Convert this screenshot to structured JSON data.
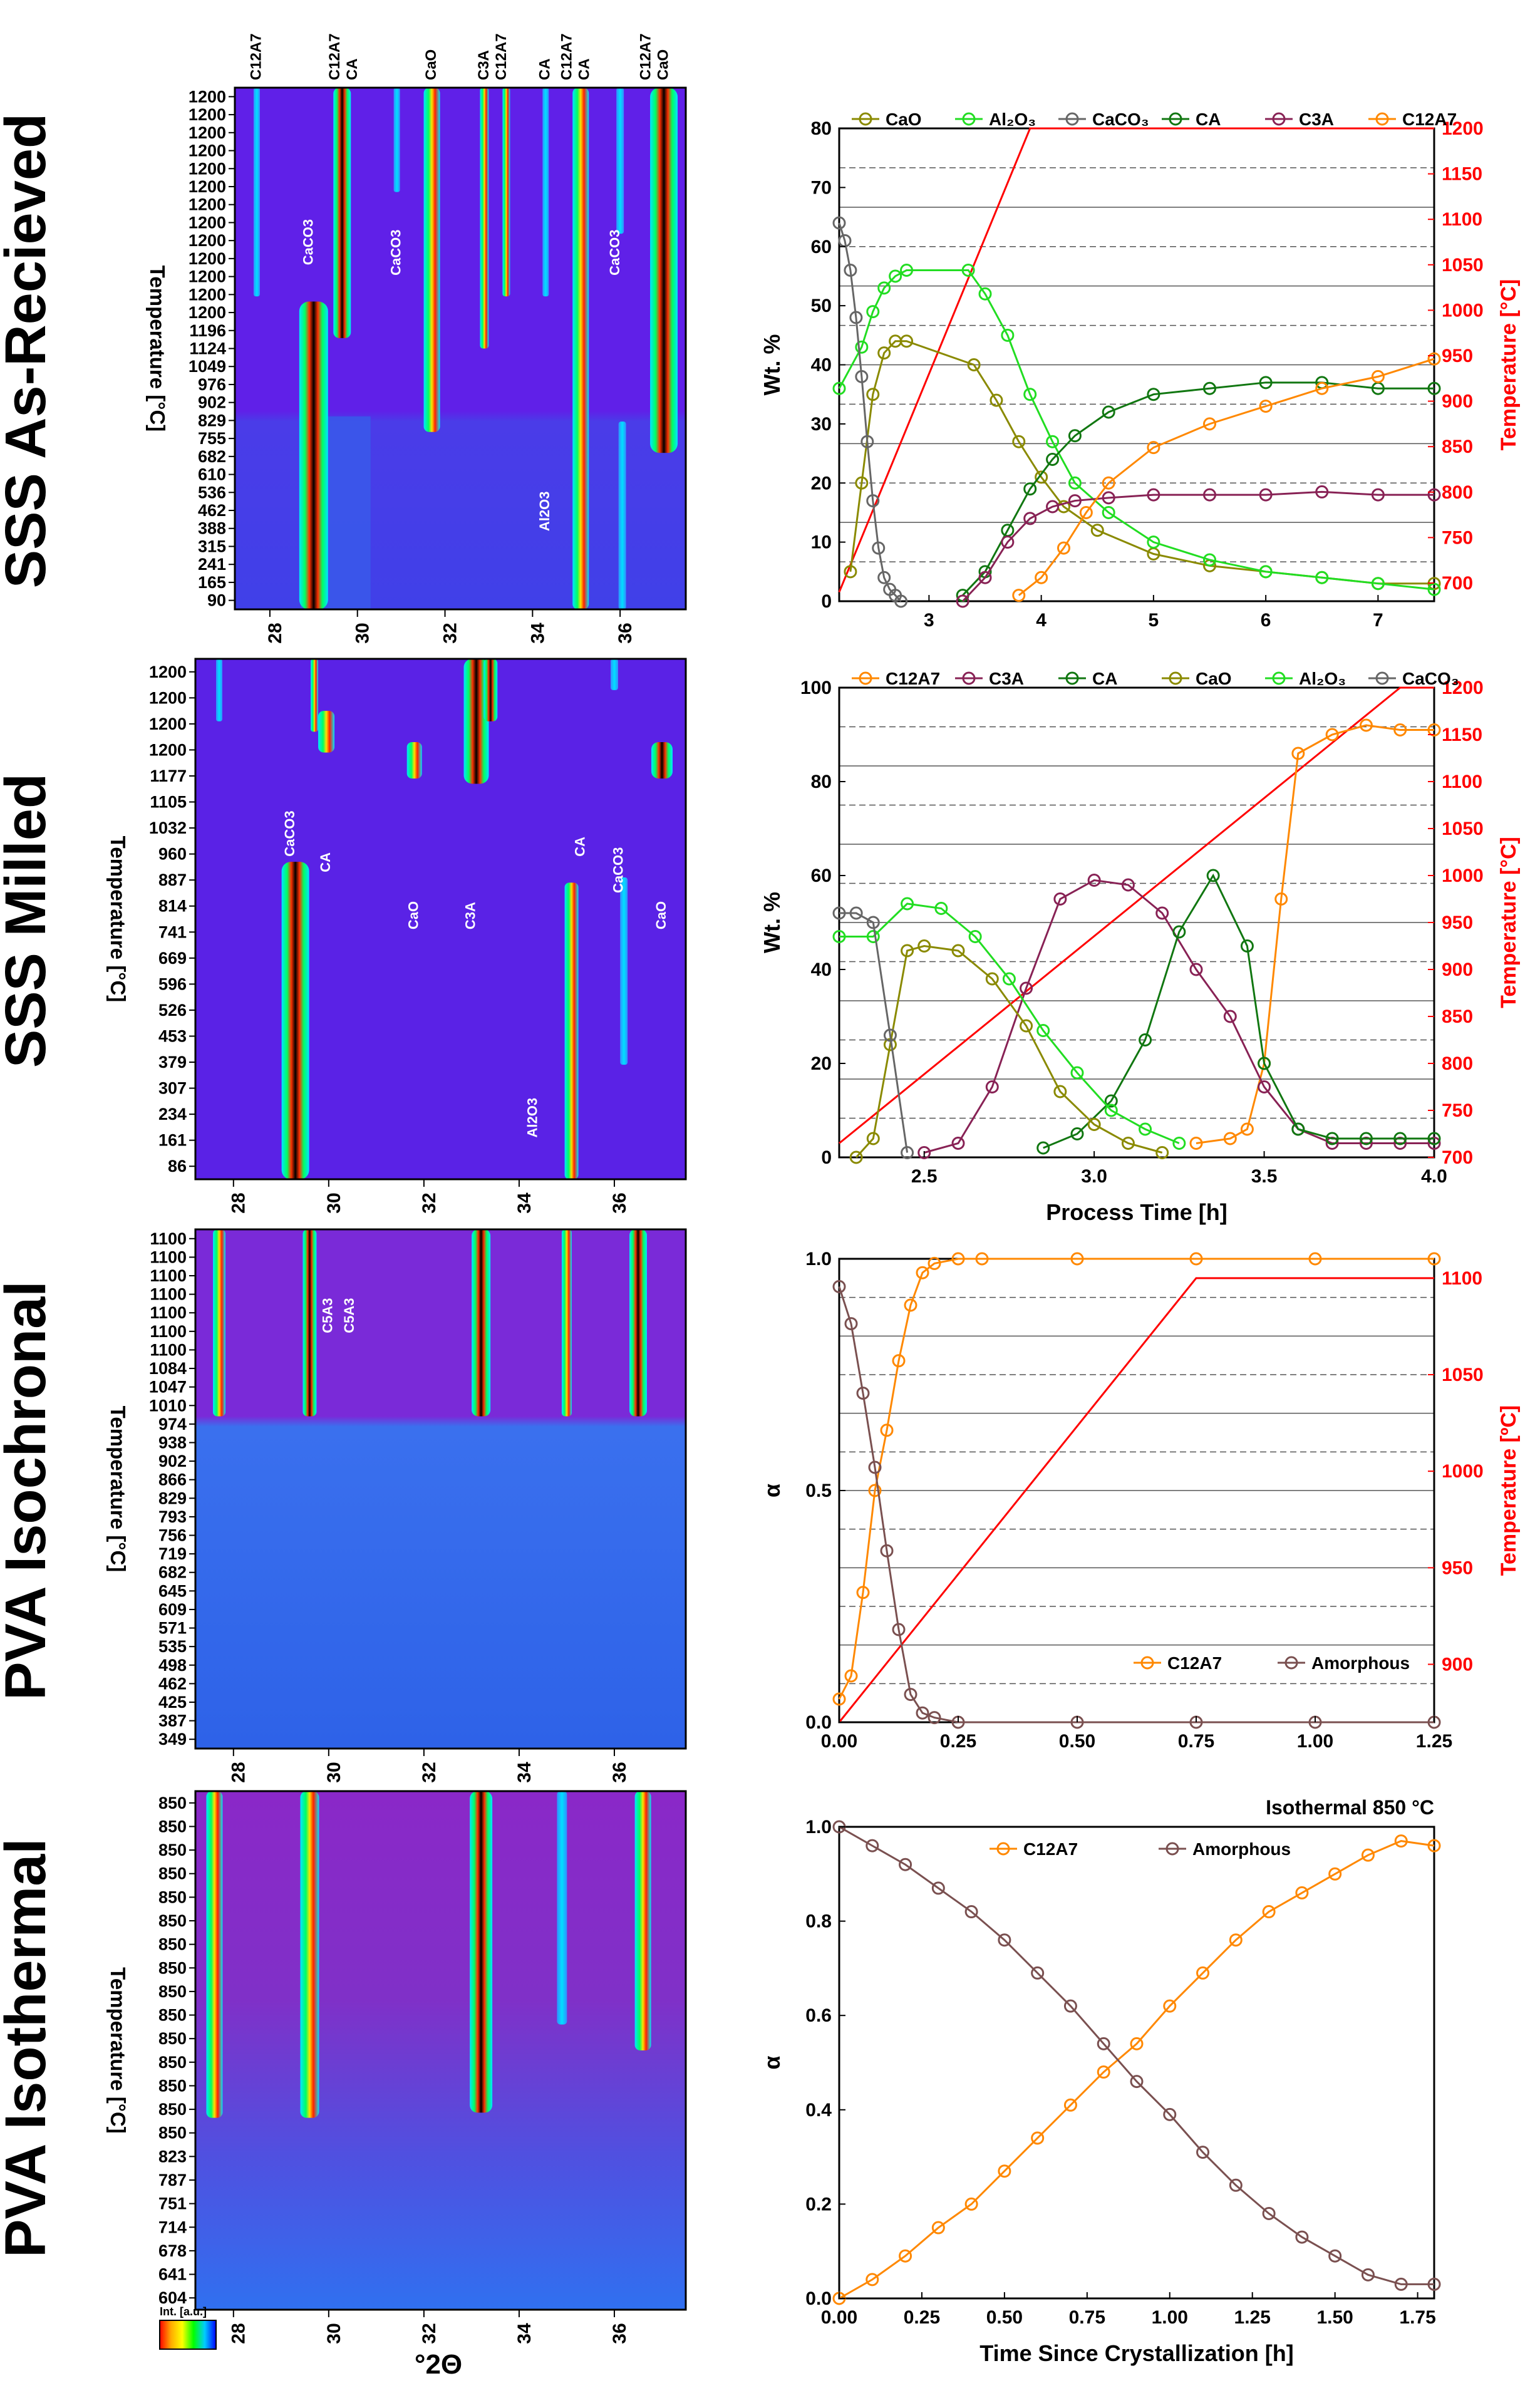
{
  "figure_axis_label": "°2Θ",
  "colorbar_label": "Int. [a.u.]",
  "row_titles": [
    "SSS As-Recieved",
    "SSS Milled",
    "PVA Isochronal",
    "PVA Isothermal"
  ],
  "heatmaps": [
    {
      "title": "SSS As-Recieved",
      "ylabel": "Temperature [°C]",
      "x_ticks": [
        "28",
        "30",
        "32",
        "34",
        "36"
      ],
      "top_labels": [
        "C12A7",
        "C12A7",
        "CA",
        "CaO",
        "C3A",
        "C12A7",
        "CA",
        "C12A7",
        "CA",
        "C12A7",
        "CaO"
      ],
      "inner_labels": [
        "CaCO3",
        "CaCO3",
        "CaCO3",
        "Al2O3"
      ],
      "y_ticks": [
        "1200",
        "1200",
        "1200",
        "1200",
        "1200",
        "1200",
        "1200",
        "1200",
        "1200",
        "1200",
        "1200",
        "1200",
        "1200",
        "1196",
        "1124",
        "1049",
        "976",
        "902",
        "829",
        "755",
        "682",
        "610",
        "536",
        "462",
        "388",
        "315",
        "241",
        "165",
        "90"
      ]
    },
    {
      "title": "SSS Milled",
      "ylabel": "Temperature [°C]",
      "x_ticks": [
        "28",
        "30",
        "32",
        "34",
        "36"
      ],
      "inner_labels": [
        "CaCO3",
        "CA",
        "CaO",
        "C3A",
        "CA",
        "CaCO3",
        "CaO",
        "Al2O3"
      ],
      "y_ticks": [
        "1200",
        "1200",
        "1200",
        "1200",
        "1177",
        "1105",
        "1032",
        "960",
        "887",
        "814",
        "741",
        "669",
        "596",
        "526",
        "453",
        "379",
        "307",
        "234",
        "161",
        "86"
      ]
    },
    {
      "title": "PVA Isochronal",
      "ylabel": "Temperature [°C]",
      "x_ticks": [
        "28",
        "30",
        "32",
        "34",
        "36"
      ],
      "inner_labels": [
        "C5A3",
        "C5A3"
      ],
      "y_ticks": [
        "1100",
        "1100",
        "1100",
        "1100",
        "1100",
        "1100",
        "1100",
        "1084",
        "1047",
        "1010",
        "974",
        "938",
        "902",
        "866",
        "829",
        "793",
        "756",
        "719",
        "682",
        "645",
        "609",
        "571",
        "535",
        "498",
        "462",
        "425",
        "387",
        "349"
      ]
    },
    {
      "title": "PVA Isothermal",
      "ylabel": "Temperature [°C]",
      "x_ticks": [
        "28",
        "30",
        "32",
        "34",
        "36"
      ],
      "y_ticks": [
        "850",
        "850",
        "850",
        "850",
        "850",
        "850",
        "850",
        "850",
        "850",
        "850",
        "850",
        "850",
        "850",
        "850",
        "850",
        "823",
        "787",
        "751",
        "714",
        "678",
        "641",
        "604"
      ]
    }
  ],
  "chart_data": [
    {
      "type": "scatter",
      "title": "",
      "xlabel": "",
      "ylabel": "Wt. %",
      "y2label": "Temperature [°C]",
      "xlim": [
        2.2,
        7.5
      ],
      "ylim": [
        0,
        80
      ],
      "y2lim": [
        680,
        1200
      ],
      "x_ticks": [
        "3",
        "4",
        "5",
        "6",
        "7"
      ],
      "y_ticks": [
        "0",
        "10",
        "20",
        "30",
        "40",
        "50",
        "60",
        "70",
        "80"
      ],
      "y2_ticks": [
        "700",
        "750",
        "800",
        "850",
        "900",
        "950",
        "1000",
        "1050",
        "1100",
        "1150",
        "1200"
      ],
      "legend": [
        "CaO",
        "Al2O3",
        "CaCO3",
        "CA",
        "C3A",
        "C12A7"
      ],
      "series": [
        {
          "name": "CaO",
          "color": "#8a8a00",
          "x": [
            2.3,
            2.4,
            2.5,
            2.6,
            2.7,
            2.8,
            3.4,
            3.6,
            3.8,
            4.0,
            4.2,
            4.5,
            5.0,
            5.5,
            6.0,
            6.5,
            7.0,
            7.5
          ],
          "y": [
            5,
            20,
            35,
            42,
            44,
            44,
            40,
            34,
            27,
            21,
            16,
            12,
            8,
            6,
            5,
            4,
            3,
            3
          ]
        },
        {
          "name": "Al2O3",
          "color": "#22dd22",
          "x": [
            2.2,
            2.4,
            2.5,
            2.6,
            2.7,
            2.8,
            3.35,
            3.5,
            3.7,
            3.9,
            4.1,
            4.3,
            4.6,
            5.0,
            5.5,
            6.0,
            6.5,
            7.0,
            7.5
          ],
          "y": [
            36,
            43,
            49,
            53,
            55,
            56,
            56,
            52,
            45,
            35,
            27,
            20,
            15,
            10,
            7,
            5,
            4,
            3,
            2
          ]
        },
        {
          "name": "CaCO3",
          "color": "#666666",
          "x": [
            2.2,
            2.25,
            2.3,
            2.35,
            2.4,
            2.45,
            2.5,
            2.55,
            2.6,
            2.65,
            2.7,
            2.75
          ],
          "y": [
            64,
            61,
            56,
            48,
            38,
            27,
            17,
            9,
            4,
            2,
            1,
            0
          ]
        },
        {
          "name": "CA",
          "color": "#117711",
          "x": [
            3.3,
            3.5,
            3.7,
            3.9,
            4.1,
            4.3,
            4.6,
            5.0,
            5.5,
            6.0,
            6.5,
            7.0,
            7.5
          ],
          "y": [
            1,
            5,
            12,
            19,
            24,
            28,
            32,
            35,
            36,
            37,
            37,
            36,
            36
          ]
        },
        {
          "name": "C3A",
          "color": "#882255",
          "x": [
            3.3,
            3.5,
            3.7,
            3.9,
            4.1,
            4.3,
            4.6,
            5.0,
            5.5,
            6.0,
            6.5,
            7.0,
            7.5
          ],
          "y": [
            0,
            4,
            10,
            14,
            16,
            17,
            17.5,
            18,
            18,
            18,
            18.5,
            18,
            18
          ]
        },
        {
          "name": "C12A7",
          "color": "#ff8800",
          "x": [
            3.8,
            4.0,
            4.2,
            4.4,
            4.6,
            5.0,
            5.5,
            6.0,
            6.5,
            7.0,
            7.5
          ],
          "y": [
            1,
            4,
            9,
            15,
            20,
            26,
            30,
            33,
            36,
            38,
            41
          ]
        }
      ],
      "temperature": {
        "x": [
          2.2,
          3.9,
          7.5
        ],
        "y": [
          690,
          1200,
          1200
        ]
      }
    },
    {
      "type": "scatter",
      "title": "",
      "xlabel": "Process Time [h]",
      "ylabel": "Wt. %",
      "y2label": "Temperature [°C]",
      "xlim": [
        2.25,
        4.0
      ],
      "ylim": [
        0,
        100
      ],
      "y2lim": [
        700,
        1200
      ],
      "x_ticks": [
        "2.5",
        "3.0",
        "3.5",
        "4.0"
      ],
      "y_ticks": [
        "0",
        "20",
        "40",
        "60",
        "80",
        "100"
      ],
      "y2_ticks": [
        "700",
        "750",
        "800",
        "850",
        "900",
        "950",
        "1000",
        "1050",
        "1100",
        "1150",
        "1200"
      ],
      "legend": [
        "C12A7",
        "C3A",
        "CA",
        "CaO",
        "Al2O3",
        "CaCO3"
      ],
      "series": [
        {
          "name": "C12A7",
          "color": "#ff8800",
          "x": [
            3.3,
            3.4,
            3.45,
            3.5,
            3.55,
            3.6,
            3.7,
            3.8,
            3.9,
            4.0
          ],
          "y": [
            3,
            4,
            6,
            20,
            55,
            86,
            90,
            92,
            91,
            91
          ]
        },
        {
          "name": "C3A",
          "color": "#882255",
          "x": [
            2.5,
            2.6,
            2.7,
            2.8,
            2.9,
            3.0,
            3.1,
            3.2,
            3.3,
            3.4,
            3.5,
            3.6,
            3.7,
            3.8,
            3.9,
            4.0
          ],
          "y": [
            1,
            3,
            15,
            36,
            55,
            59,
            58,
            52,
            40,
            30,
            15,
            6,
            3,
            3,
            3,
            3
          ]
        },
        {
          "name": "CA",
          "color": "#117711",
          "x": [
            2.85,
            2.95,
            3.05,
            3.15,
            3.25,
            3.35,
            3.45,
            3.5,
            3.6,
            3.7,
            3.8,
            3.9,
            4.0
          ],
          "y": [
            2,
            5,
            12,
            25,
            48,
            60,
            45,
            20,
            6,
            4,
            4,
            4,
            4
          ]
        },
        {
          "name": "CaO",
          "color": "#8a8a00",
          "x": [
            2.3,
            2.35,
            2.4,
            2.45,
            2.5,
            2.6,
            2.7,
            2.8,
            2.9,
            3.0,
            3.1,
            3.2
          ],
          "y": [
            0,
            4,
            24,
            44,
            45,
            44,
            38,
            28,
            14,
            7,
            3,
            1
          ]
        },
        {
          "name": "Al2O3",
          "color": "#22dd22",
          "x": [
            2.25,
            2.35,
            2.45,
            2.55,
            2.65,
            2.75,
            2.85,
            2.95,
            3.05,
            3.15,
            3.25
          ],
          "y": [
            47,
            47,
            54,
            53,
            47,
            38,
            27,
            18,
            10,
            6,
            3
          ]
        },
        {
          "name": "CaCO3",
          "color": "#666666",
          "x": [
            2.25,
            2.3,
            2.35,
            2.4,
            2.45
          ],
          "y": [
            52,
            52,
            50,
            26,
            1
          ]
        }
      ],
      "temperature": {
        "x": [
          2.25,
          3.9,
          4.0
        ],
        "y": [
          715,
          1200,
          1200
        ]
      }
    },
    {
      "type": "scatter",
      "title": "",
      "xlabel": "",
      "ylabel": "α",
      "y2label": "Temperature [ºC]",
      "xlim": [
        0,
        1.25
      ],
      "ylim": [
        0,
        1.0
      ],
      "y2lim": [
        870,
        1110
      ],
      "x_ticks": [
        "0.00",
        "0.25",
        "0.50",
        "0.75",
        "1.00",
        "1.25"
      ],
      "y_ticks": [
        "0.0",
        "0.5",
        "1.0"
      ],
      "y2_ticks": [
        "900",
        "950",
        "1000",
        "1050",
        "1100"
      ],
      "legend": [
        "C12A7",
        "Amorphous"
      ],
      "series": [
        {
          "name": "C12A7",
          "color": "#ff8800",
          "x": [
            0.0,
            0.025,
            0.05,
            0.075,
            0.1,
            0.125,
            0.15,
            0.175,
            0.2,
            0.25,
            0.3,
            0.5,
            0.75,
            1.0,
            1.25
          ],
          "y": [
            0.05,
            0.1,
            0.28,
            0.5,
            0.63,
            0.78,
            0.9,
            0.97,
            0.99,
            1.0,
            1.0,
            1.0,
            1.0,
            1.0,
            1.0
          ]
        },
        {
          "name": "Amorphous",
          "color": "#7a5050",
          "x": [
            0.0,
            0.025,
            0.05,
            0.075,
            0.1,
            0.125,
            0.15,
            0.175,
            0.2,
            0.25,
            0.5,
            0.75,
            1.0,
            1.25
          ],
          "y": [
            0.94,
            0.86,
            0.71,
            0.55,
            0.37,
            0.2,
            0.06,
            0.02,
            0.01,
            0.0,
            0.0,
            0.0,
            0.0,
            0.0
          ]
        }
      ],
      "temperature": {
        "x": [
          0.0,
          0.75,
          1.25
        ],
        "y": [
          870,
          1100,
          1100
        ]
      }
    },
    {
      "type": "scatter",
      "title": "Isothermal 850 °C",
      "xlabel": "Time Since Crystallization [h]",
      "ylabel": "α",
      "xlim": [
        0,
        1.8
      ],
      "ylim": [
        0,
        1.0
      ],
      "x_ticks": [
        "0.00",
        "0.25",
        "0.50",
        "0.75",
        "1.00",
        "1.25",
        "1.50",
        "1.75"
      ],
      "y_ticks": [
        "0.0",
        "0.2",
        "0.4",
        "0.6",
        "0.8",
        "1.0"
      ],
      "legend": [
        "C12A7",
        "Amorphous"
      ],
      "series": [
        {
          "name": "C12A7",
          "color": "#ff8800",
          "x": [
            0.0,
            0.1,
            0.2,
            0.3,
            0.4,
            0.5,
            0.6,
            0.7,
            0.8,
            0.9,
            1.0,
            1.1,
            1.2,
            1.3,
            1.4,
            1.5,
            1.6,
            1.7,
            1.8
          ],
          "y": [
            0.0,
            0.04,
            0.09,
            0.15,
            0.2,
            0.27,
            0.34,
            0.41,
            0.48,
            0.54,
            0.62,
            0.69,
            0.76,
            0.82,
            0.86,
            0.9,
            0.94,
            0.97,
            0.96
          ]
        },
        {
          "name": "Amorphous",
          "color": "#7a5050",
          "x": [
            0.0,
            0.1,
            0.2,
            0.3,
            0.4,
            0.5,
            0.6,
            0.7,
            0.8,
            0.9,
            1.0,
            1.1,
            1.2,
            1.3,
            1.4,
            1.5,
            1.6,
            1.7,
            1.8
          ],
          "y": [
            1.0,
            0.96,
            0.92,
            0.87,
            0.82,
            0.76,
            0.69,
            0.62,
            0.54,
            0.46,
            0.39,
            0.31,
            0.24,
            0.18,
            0.13,
            0.09,
            0.05,
            0.03,
            0.03
          ]
        }
      ]
    }
  ]
}
